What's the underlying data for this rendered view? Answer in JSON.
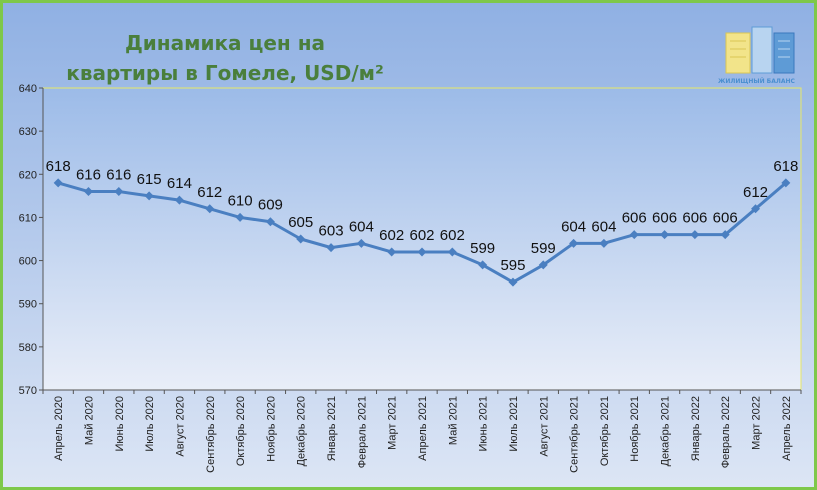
{
  "chart_data": {
    "type": "line",
    "title_line1": "Динамика цен на",
    "title_line2": "квартиры в Гомеле, USD/м²",
    "logo_text": "ЖИЛИЩНЫЙ БАЛАНС",
    "categories": [
      "Апрель 2020",
      "Май 2020",
      "Июнь 2020",
      "Июль 2020",
      "Август 2020",
      "Сентябрь 2020",
      "Октябрь 2020",
      "Ноябрь 2020",
      "Декабрь 2020",
      "Январь 2021",
      "Февраль 2021",
      "Март 2021",
      "Апрель 2021",
      "Май 2021",
      "Июнь 2021",
      "Июль 2021",
      "Август 2021",
      "Сентябрь 2021",
      "Октябрь 2021",
      "Ноябрь 2021",
      "Декабрь 2021",
      "Январь 2022",
      "Февраль 2022",
      "Март 2022",
      "Апрель 2022"
    ],
    "values": [
      618,
      616,
      616,
      615,
      614,
      612,
      610,
      609,
      605,
      603,
      604,
      602,
      602,
      602,
      599,
      595,
      599,
      604,
      604,
      606,
      606,
      606,
      606,
      612,
      618
    ],
    "ylim": [
      570,
      640
    ],
    "yticks": [
      570,
      580,
      590,
      600,
      610,
      620,
      630,
      640
    ],
    "line_color": "#4a7fc1",
    "border_color": "#7ec84a",
    "grid": false
  }
}
